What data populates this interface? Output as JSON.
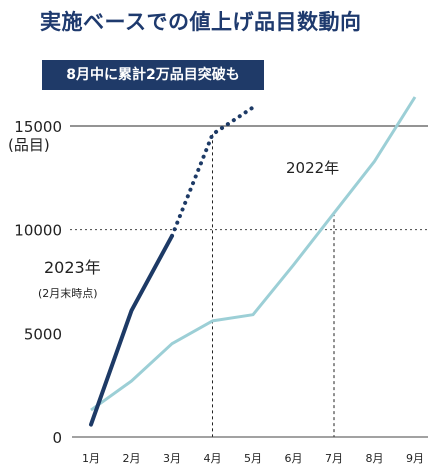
{
  "title": "実施ベースでの値上げ品目数動向",
  "banner": "8月中に累計2万品目突破も",
  "ylabel_unit": "(品目)",
  "annotations": {
    "label_2023": "2023年",
    "note_2023": "(2月末時点)",
    "label_2022": "2022年"
  },
  "colors": {
    "series_2023": "#1d3a66",
    "series_2022": "#9ccfd6",
    "banner_bg": "#1f3a68",
    "title": "#1e3a6e"
  },
  "chart_data": {
    "type": "line",
    "title": "実施ベースでの値上げ品目数動向",
    "categories": [
      "1月",
      "2月",
      "3月",
      "4月",
      "5月",
      "6月",
      "7月",
      "8月",
      "9月"
    ],
    "ylim": [
      0,
      16000
    ],
    "yticks": [
      0,
      5000,
      10000,
      15000
    ],
    "ylabel": "(品目)",
    "grid": {
      "y_solid": [
        15000
      ],
      "y_dashed": [
        10000
      ]
    },
    "series": [
      {
        "name": "2023年",
        "actual": [
          600,
          6100,
          9700
        ],
        "forecast": [
          9700,
          14600,
          15900
        ]
      },
      {
        "name": "2022年",
        "values": [
          1300,
          2700,
          4500,
          5600,
          5900,
          8300,
          10800,
          13300,
          16400
        ]
      }
    ],
    "vertical_markers": [
      "4月",
      "7月"
    ]
  }
}
